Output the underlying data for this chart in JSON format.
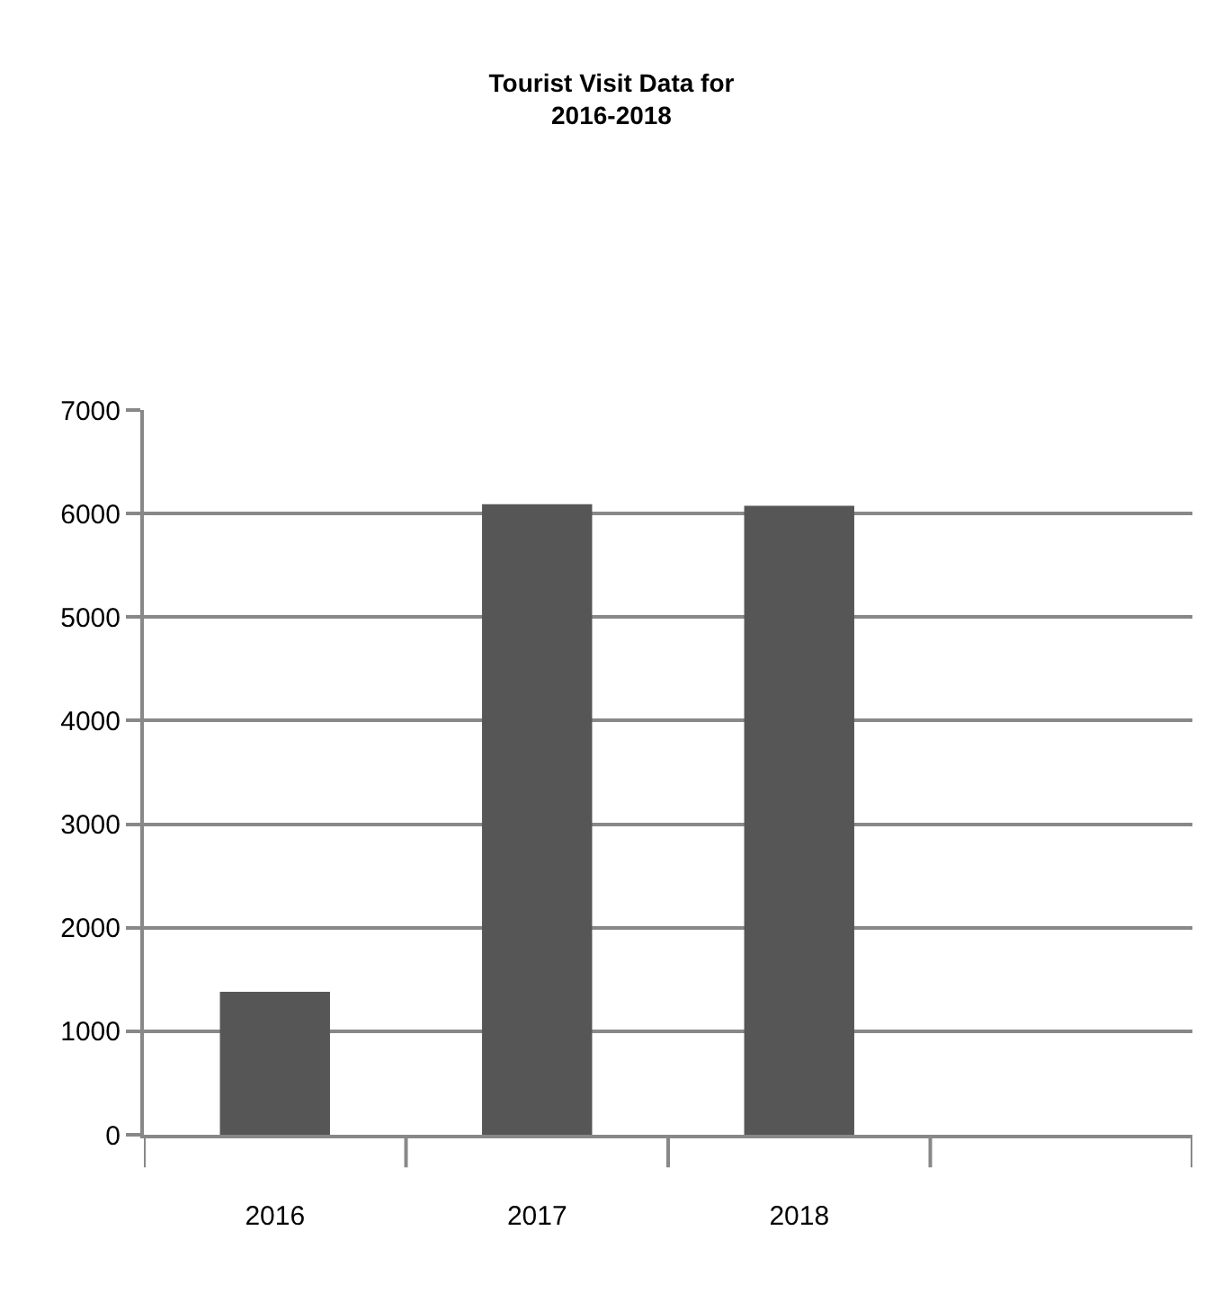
{
  "chart_data": {
    "type": "bar",
    "title": "Tourist Visit Data for\n2016-2018",
    "categories": [
      "2016",
      "2017",
      "2018",
      null
    ],
    "values": [
      1380,
      6090,
      6075,
      null
    ],
    "color": "#565656",
    "ylim": [
      0,
      7000
    ],
    "yticks": [
      0,
      1000,
      2000,
      3000,
      4000,
      5000,
      6000,
      7000
    ],
    "grid": "y",
    "legend": false
  }
}
